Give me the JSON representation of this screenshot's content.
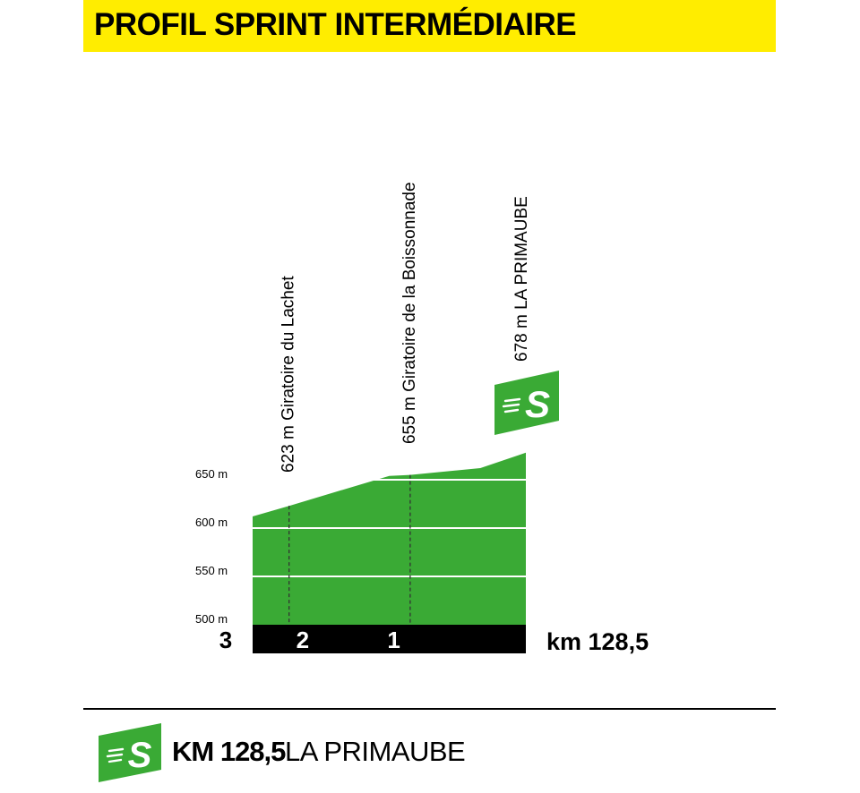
{
  "header": {
    "title": "PROFIL SPRINT INTERMÉDIAIRE"
  },
  "colors": {
    "title_bar": "#ffed00",
    "profile_fill": "#3aaa35",
    "distance_bar": "#000000",
    "sprint_badge": "#3aaa35"
  },
  "icons": {
    "sprint": "sprint-s-icon"
  },
  "chart_data": {
    "type": "area",
    "title": "PROFIL SPRINT INTERMÉDIAIRE",
    "x_unit": "km to sprint",
    "xlim": [
      3,
      0
    ],
    "ylim": [
      500,
      678
    ],
    "profile": [
      {
        "x": 3.0,
        "y": 612
      },
      {
        "x": 2.6,
        "y": 623
      },
      {
        "x": 1.5,
        "y": 654
      },
      {
        "x": 1.27,
        "y": 655
      },
      {
        "x": 0.5,
        "y": 662
      },
      {
        "x": 0.0,
        "y": 678
      }
    ],
    "y_ticks": [
      {
        "value": 500,
        "label": "500 m"
      },
      {
        "value": 550,
        "label": "550 m"
      },
      {
        "value": 600,
        "label": "600 m"
      },
      {
        "value": 650,
        "label": "650 m"
      }
    ],
    "km_markers": [
      {
        "x": 3,
        "label": "3"
      },
      {
        "x": 2,
        "label": "2"
      },
      {
        "x": 1,
        "label": "1"
      }
    ],
    "end_label": "km 128,5",
    "annotations": [
      {
        "x": 2.6,
        "altitude": 623,
        "label": "623 m Giratoire du Lachet",
        "dashed": true
      },
      {
        "x": 1.27,
        "altitude": 655,
        "label": "655 m Giratoire de la Boissonnade",
        "dashed": true
      },
      {
        "x": 0.0,
        "altitude": 678,
        "label": "678 m LA PRIMAUBE",
        "dashed": false
      }
    ]
  },
  "footer": {
    "km": "KM 128,5",
    "place": "LA PRIMAUBE"
  }
}
